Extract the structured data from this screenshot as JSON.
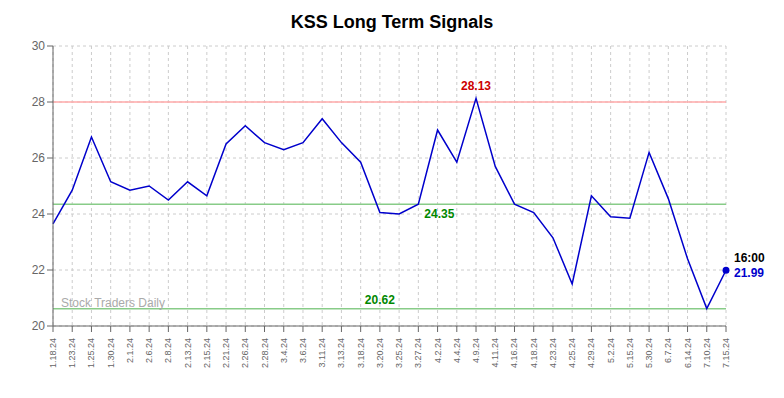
{
  "chart_data": {
    "type": "line",
    "title": "KSS Long Term Signals",
    "categories": [
      "1.18.24",
      "1.23.24",
      "1.25.24",
      "1.30.24",
      "2.1.24",
      "2.6.24",
      "2.8.24",
      "2.13.24",
      "2.15.24",
      "2.21.24",
      "2.26.24",
      "2.28.24",
      "3.4.24",
      "3.6.24",
      "3.11.24",
      "3.13.24",
      "3.18.24",
      "3.20.24",
      "3.25.24",
      "3.27.24",
      "4.2.24",
      "4.4.24",
      "4.9.24",
      "4.11.24",
      "4.16.24",
      "4.18.24",
      "4.23.24",
      "4.25.24",
      "4.29.24",
      "5.2.24",
      "5.15.24",
      "5.30.24",
      "6.7.24",
      "6.14.24",
      "7.10.24",
      "7.15.24"
    ],
    "values": [
      23.65,
      24.85,
      26.75,
      25.15,
      24.85,
      25.0,
      24.5,
      25.15,
      24.65,
      26.5,
      27.15,
      26.55,
      26.3,
      26.55,
      27.4,
      26.55,
      25.85,
      24.05,
      24.0,
      24.35,
      27.0,
      25.85,
      28.13,
      25.7,
      24.35,
      24.05,
      23.15,
      21.5,
      24.65,
      23.9,
      23.85,
      26.2,
      24.55,
      22.4,
      20.62,
      21.99
    ],
    "color": "#0000cc",
    "ylim": [
      20,
      30
    ],
    "yticks": [
      20,
      22,
      24,
      26,
      28,
      30
    ],
    "grid": true,
    "hlines": [
      {
        "y": 28.0,
        "color": "#ffaaaa"
      },
      {
        "y": 24.35,
        "color": "#88cc88"
      },
      {
        "y": 20.62,
        "color": "#88cc88"
      }
    ],
    "annotations": [
      {
        "text": "28.13",
        "color": "#cc0000",
        "x": "4.9.24",
        "y": 28.13
      },
      {
        "text": "24.35",
        "color": "#008800",
        "x": "3.27.24",
        "y": 24.35
      },
      {
        "text": "20.62",
        "color": "#008800",
        "x": "3.20.24",
        "y": 20.62
      },
      {
        "text": "16:00",
        "color": "#000000",
        "x": "7.15.24",
        "y": 21.99
      },
      {
        "text": "21.99",
        "color": "#0000cc",
        "x": "7.15.24",
        "y": 21.99
      },
      {
        "text": "Stock Traders Daily",
        "color": "#aaaaaa"
      }
    ]
  }
}
